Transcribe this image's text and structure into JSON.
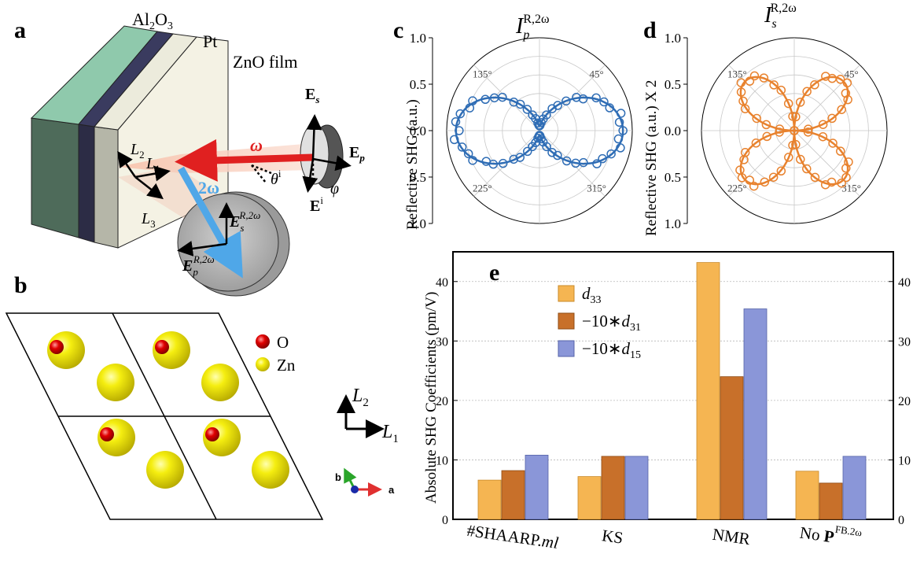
{
  "panels": {
    "a": "a",
    "b": "b",
    "c": "c",
    "d": "d",
    "e": "e"
  },
  "panel_a": {
    "layers": {
      "sub_main": "Al",
      "sub_2": "2",
      "sub_3": "O",
      "sub_4": "3",
      "pt": "Pt",
      "zno": "ZnO film"
    },
    "beam": {
      "omega": "ω",
      "two_omega": "2ω",
      "theta": "θ",
      "theta_sup": "i"
    },
    "fields": {
      "es": "E",
      "es_sub": "s",
      "ep": "E",
      "ep_sub": "p",
      "ei": "E",
      "ei_sup": "i",
      "phi": "φ",
      "esr": "E",
      "esr_sub": "s",
      "esr_sup": "R,2ω",
      "epr": "E",
      "epr_sub": "p",
      "epr_sup": "R,2ω"
    },
    "axes": {
      "l1": "L",
      "l1_sub": "1",
      "l2": "L",
      "l2_sub": "2",
      "l3": "L",
      "l3_sub": "3"
    }
  },
  "panel_b": {
    "legend": [
      "O",
      "Zn"
    ],
    "axes": {
      "l1": "L",
      "l1_sub": "1",
      "l2": "L",
      "l2_sub": "2"
    },
    "triad": {
      "a": "a",
      "b": "b"
    },
    "colors": {
      "O": "#d40000",
      "Zn": "#f2ea00"
    }
  },
  "chart_data": [
    {
      "type": "polar-scatter-line",
      "panel": "c",
      "title_base": "I",
      "title_sub": "p",
      "title_sup": "R,2ω",
      "ylabel": "Reflective SHG (a.u.)",
      "r_ticks": [
        "1.0",
        "0.5",
        "0.0",
        "0.5",
        "1.0"
      ],
      "angle_ticks": [
        "45°",
        "135°",
        "225°",
        "315°"
      ],
      "color": "#2f6db5",
      "lobes": 2,
      "rmax_fraction": 0.85
    },
    {
      "type": "polar-scatter-line",
      "panel": "d",
      "title_base": "I",
      "title_sub": "s",
      "title_sup": "R,2ω",
      "ylabel": "Reflective SHG (a.u.) X 2",
      "r_ticks": [
        "1.0",
        "0.5",
        "0.0",
        "0.5",
        "1.0"
      ],
      "angle_ticks": [
        "45°",
        "135°",
        "225°",
        "315°"
      ],
      "color": "#e8822e",
      "lobes": 4,
      "rmax_fraction": 0.75
    },
    {
      "type": "bar",
      "panel": "e",
      "ylabel": "Absolute SHG Coefficients (pm/V)",
      "ylim": [
        0,
        45
      ],
      "yticks": [
        0,
        10,
        20,
        30,
        40
      ],
      "grid": true,
      "legend_position": "top-left",
      "categories": [
        {
          "main": "#SHAARP.",
          "tail": "ml"
        },
        {
          "main": "KS",
          "tail": ""
        },
        {
          "main": "NMR",
          "tail": ""
        },
        {
          "main": "No ",
          "tail": "P",
          "sup": "FB.2ω"
        }
      ],
      "series": [
        {
          "name": "d33",
          "label_main": "d",
          "label_sub": "33",
          "label_prefix": "",
          "color": "#f5b552",
          "stroke": "#c98a2a",
          "values": [
            6.6,
            7.2,
            43.2,
            8.1
          ]
        },
        {
          "name": "−10∗d31",
          "label_main": "d",
          "label_sub": "31",
          "label_prefix": "−10∗",
          "color": "#c8702a",
          "stroke": "#8f4c15",
          "values": [
            8.2,
            10.6,
            24.0,
            6.1
          ]
        },
        {
          "name": "−10∗d15",
          "label_main": "d",
          "label_sub": "15",
          "label_prefix": "−10∗",
          "color": "#8a96d8",
          "stroke": "#5563a8",
          "values": [
            10.8,
            10.6,
            35.4,
            10.6
          ]
        }
      ]
    }
  ]
}
